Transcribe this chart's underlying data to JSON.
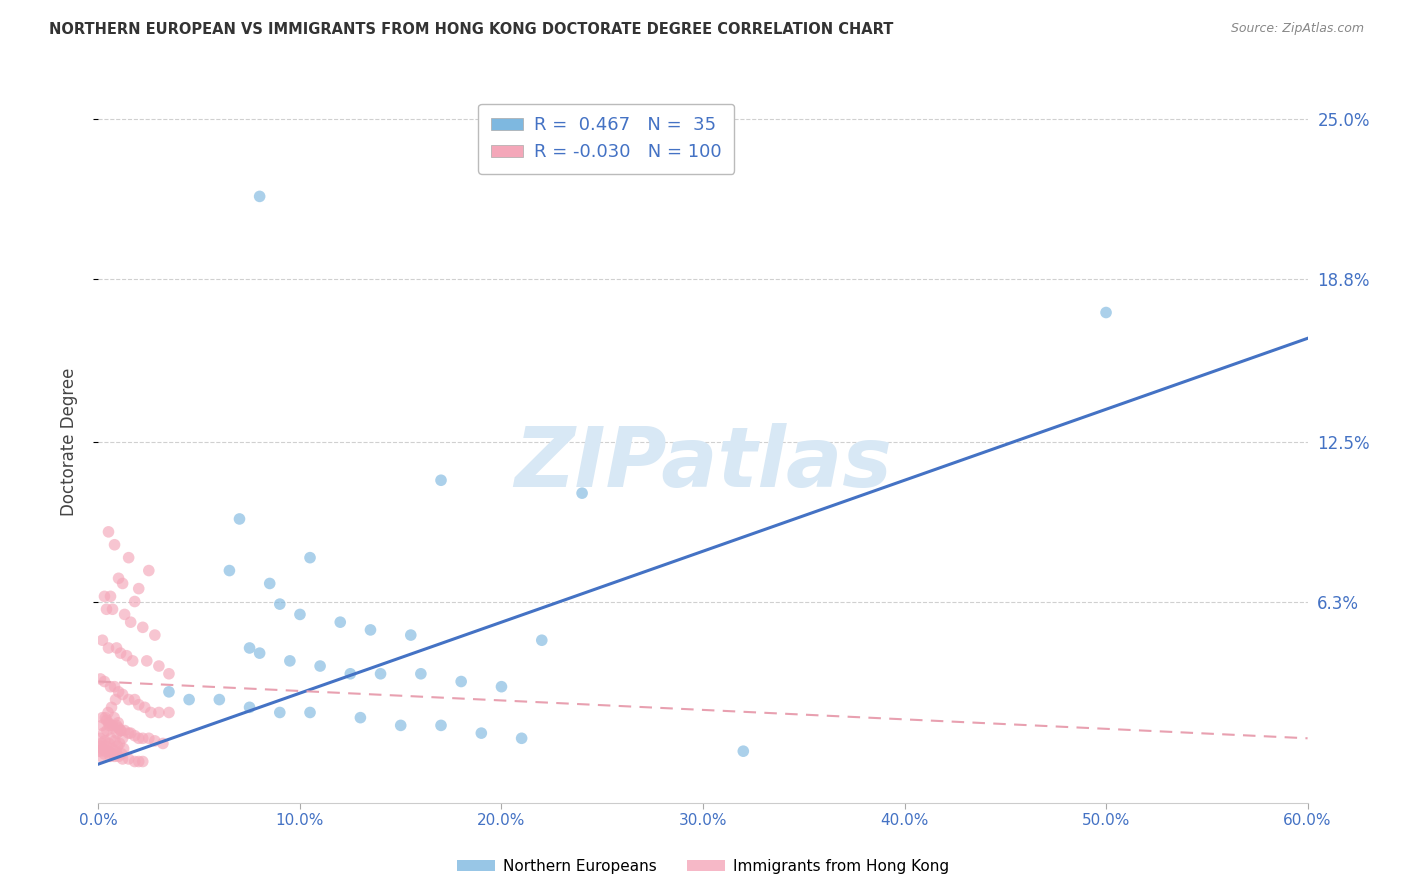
{
  "title": "NORTHERN EUROPEAN VS IMMIGRANTS FROM HONG KONG DOCTORATE DEGREE CORRELATION CHART",
  "source": "Source: ZipAtlas.com",
  "ylabel": "Doctorate Degree",
  "ytick_labels": [
    "6.3%",
    "12.5%",
    "18.8%",
    "25.0%"
  ],
  "ytick_vals": [
    6.3,
    12.5,
    18.8,
    25.0
  ],
  "xlim": [
    0,
    60
  ],
  "ylim": [
    -1.5,
    26.5
  ],
  "watermark_text": "ZIPatlas",
  "legend_blue_R": "0.467",
  "legend_blue_N": "35",
  "legend_pink_R": "-0.030",
  "legend_pink_N": "100",
  "blue_color": "#7eb8e0",
  "pink_color": "#f4a7b9",
  "blue_line_color": "#4472c4",
  "pink_line_color": "#e8a0b0",
  "blue_scatter": [
    [
      8.0,
      22.0
    ],
    [
      50.0,
      17.5
    ],
    [
      17.0,
      11.0
    ],
    [
      24.0,
      10.5
    ],
    [
      7.0,
      9.5
    ],
    [
      10.5,
      8.0
    ],
    [
      6.5,
      7.5
    ],
    [
      8.5,
      7.0
    ],
    [
      9.0,
      6.2
    ],
    [
      10.0,
      5.8
    ],
    [
      12.0,
      5.5
    ],
    [
      13.5,
      5.2
    ],
    [
      15.5,
      5.0
    ],
    [
      22.0,
      4.8
    ],
    [
      7.5,
      4.5
    ],
    [
      8.0,
      4.3
    ],
    [
      9.5,
      4.0
    ],
    [
      11.0,
      3.8
    ],
    [
      12.5,
      3.5
    ],
    [
      14.0,
      3.5
    ],
    [
      16.0,
      3.5
    ],
    [
      18.0,
      3.2
    ],
    [
      20.0,
      3.0
    ],
    [
      3.5,
      2.8
    ],
    [
      4.5,
      2.5
    ],
    [
      6.0,
      2.5
    ],
    [
      7.5,
      2.2
    ],
    [
      9.0,
      2.0
    ],
    [
      10.5,
      2.0
    ],
    [
      13.0,
      1.8
    ],
    [
      15.0,
      1.5
    ],
    [
      17.0,
      1.5
    ],
    [
      19.0,
      1.2
    ],
    [
      21.0,
      1.0
    ],
    [
      32.0,
      0.5
    ]
  ],
  "pink_scatter": [
    [
      0.5,
      9.0
    ],
    [
      0.8,
      8.5
    ],
    [
      1.5,
      8.0
    ],
    [
      2.5,
      7.5
    ],
    [
      1.0,
      7.2
    ],
    [
      1.2,
      7.0
    ],
    [
      2.0,
      6.8
    ],
    [
      0.3,
      6.5
    ],
    [
      0.6,
      6.5
    ],
    [
      1.8,
      6.3
    ],
    [
      0.4,
      6.0
    ],
    [
      0.7,
      6.0
    ],
    [
      1.3,
      5.8
    ],
    [
      1.6,
      5.5
    ],
    [
      2.2,
      5.3
    ],
    [
      2.8,
      5.0
    ],
    [
      0.2,
      4.8
    ],
    [
      0.5,
      4.5
    ],
    [
      0.9,
      4.5
    ],
    [
      1.1,
      4.3
    ],
    [
      1.4,
      4.2
    ],
    [
      1.7,
      4.0
    ],
    [
      2.4,
      4.0
    ],
    [
      3.0,
      3.8
    ],
    [
      3.5,
      3.5
    ],
    [
      0.1,
      3.3
    ],
    [
      0.3,
      3.2
    ],
    [
      0.6,
      3.0
    ],
    [
      0.8,
      3.0
    ],
    [
      1.0,
      2.8
    ],
    [
      1.2,
      2.7
    ],
    [
      1.5,
      2.5
    ],
    [
      1.8,
      2.5
    ],
    [
      2.0,
      2.3
    ],
    [
      2.3,
      2.2
    ],
    [
      2.6,
      2.0
    ],
    [
      3.0,
      2.0
    ],
    [
      3.5,
      2.0
    ],
    [
      0.2,
      1.8
    ],
    [
      0.4,
      1.7
    ],
    [
      0.5,
      1.6
    ],
    [
      0.7,
      1.5
    ],
    [
      0.9,
      1.5
    ],
    [
      1.0,
      1.4
    ],
    [
      1.1,
      1.3
    ],
    [
      1.3,
      1.3
    ],
    [
      1.5,
      1.2
    ],
    [
      1.6,
      1.2
    ],
    [
      1.8,
      1.1
    ],
    [
      2.0,
      1.0
    ],
    [
      2.2,
      1.0
    ],
    [
      2.5,
      1.0
    ],
    [
      2.8,
      0.9
    ],
    [
      3.2,
      0.8
    ],
    [
      0.1,
      0.7
    ],
    [
      0.2,
      0.6
    ],
    [
      0.3,
      0.5
    ],
    [
      0.5,
      0.5
    ],
    [
      0.6,
      0.4
    ],
    [
      0.8,
      0.3
    ],
    [
      1.0,
      0.3
    ],
    [
      1.2,
      0.2
    ],
    [
      1.5,
      0.2
    ],
    [
      1.8,
      0.1
    ],
    [
      2.0,
      0.1
    ],
    [
      2.2,
      0.1
    ],
    [
      0.05,
      0.5
    ],
    [
      0.08,
      1.0
    ],
    [
      0.12,
      0.3
    ],
    [
      0.15,
      0.8
    ],
    [
      0.18,
      1.5
    ],
    [
      0.22,
      0.6
    ],
    [
      0.25,
      1.2
    ],
    [
      0.28,
      0.4
    ],
    [
      0.32,
      0.9
    ],
    [
      0.35,
      1.8
    ],
    [
      0.38,
      0.7
    ],
    [
      0.42,
      1.3
    ],
    [
      0.45,
      0.5
    ],
    [
      0.48,
      2.0
    ],
    [
      0.52,
      0.8
    ],
    [
      0.55,
      1.5
    ],
    [
      0.58,
      0.3
    ],
    [
      0.62,
      1.0
    ],
    [
      0.65,
      2.2
    ],
    [
      0.68,
      0.6
    ],
    [
      0.72,
      1.4
    ],
    [
      0.75,
      0.4
    ],
    [
      0.78,
      1.8
    ],
    [
      0.82,
      0.9
    ],
    [
      0.85,
      2.5
    ],
    [
      0.88,
      0.5
    ],
    [
      0.92,
      1.2
    ],
    [
      0.95,
      0.7
    ],
    [
      0.98,
      1.6
    ],
    [
      1.05,
      0.8
    ],
    [
      1.1,
      1.3
    ],
    [
      1.15,
      0.4
    ],
    [
      1.2,
      1.0
    ],
    [
      1.25,
      0.6
    ]
  ],
  "blue_trend_x": [
    0,
    60
  ],
  "blue_trend_y": [
    0.0,
    16.5
  ],
  "pink_trend_x": [
    0,
    60
  ],
  "pink_trend_y": [
    3.2,
    1.0
  ],
  "background_color": "#ffffff",
  "grid_color": "#d0d0d0",
  "title_color": "#333333",
  "axis_label_color": "#444444",
  "tick_color": "#4472c4",
  "xtick_color": "#4472c4",
  "marker_size": 70,
  "marker_alpha": 0.65
}
